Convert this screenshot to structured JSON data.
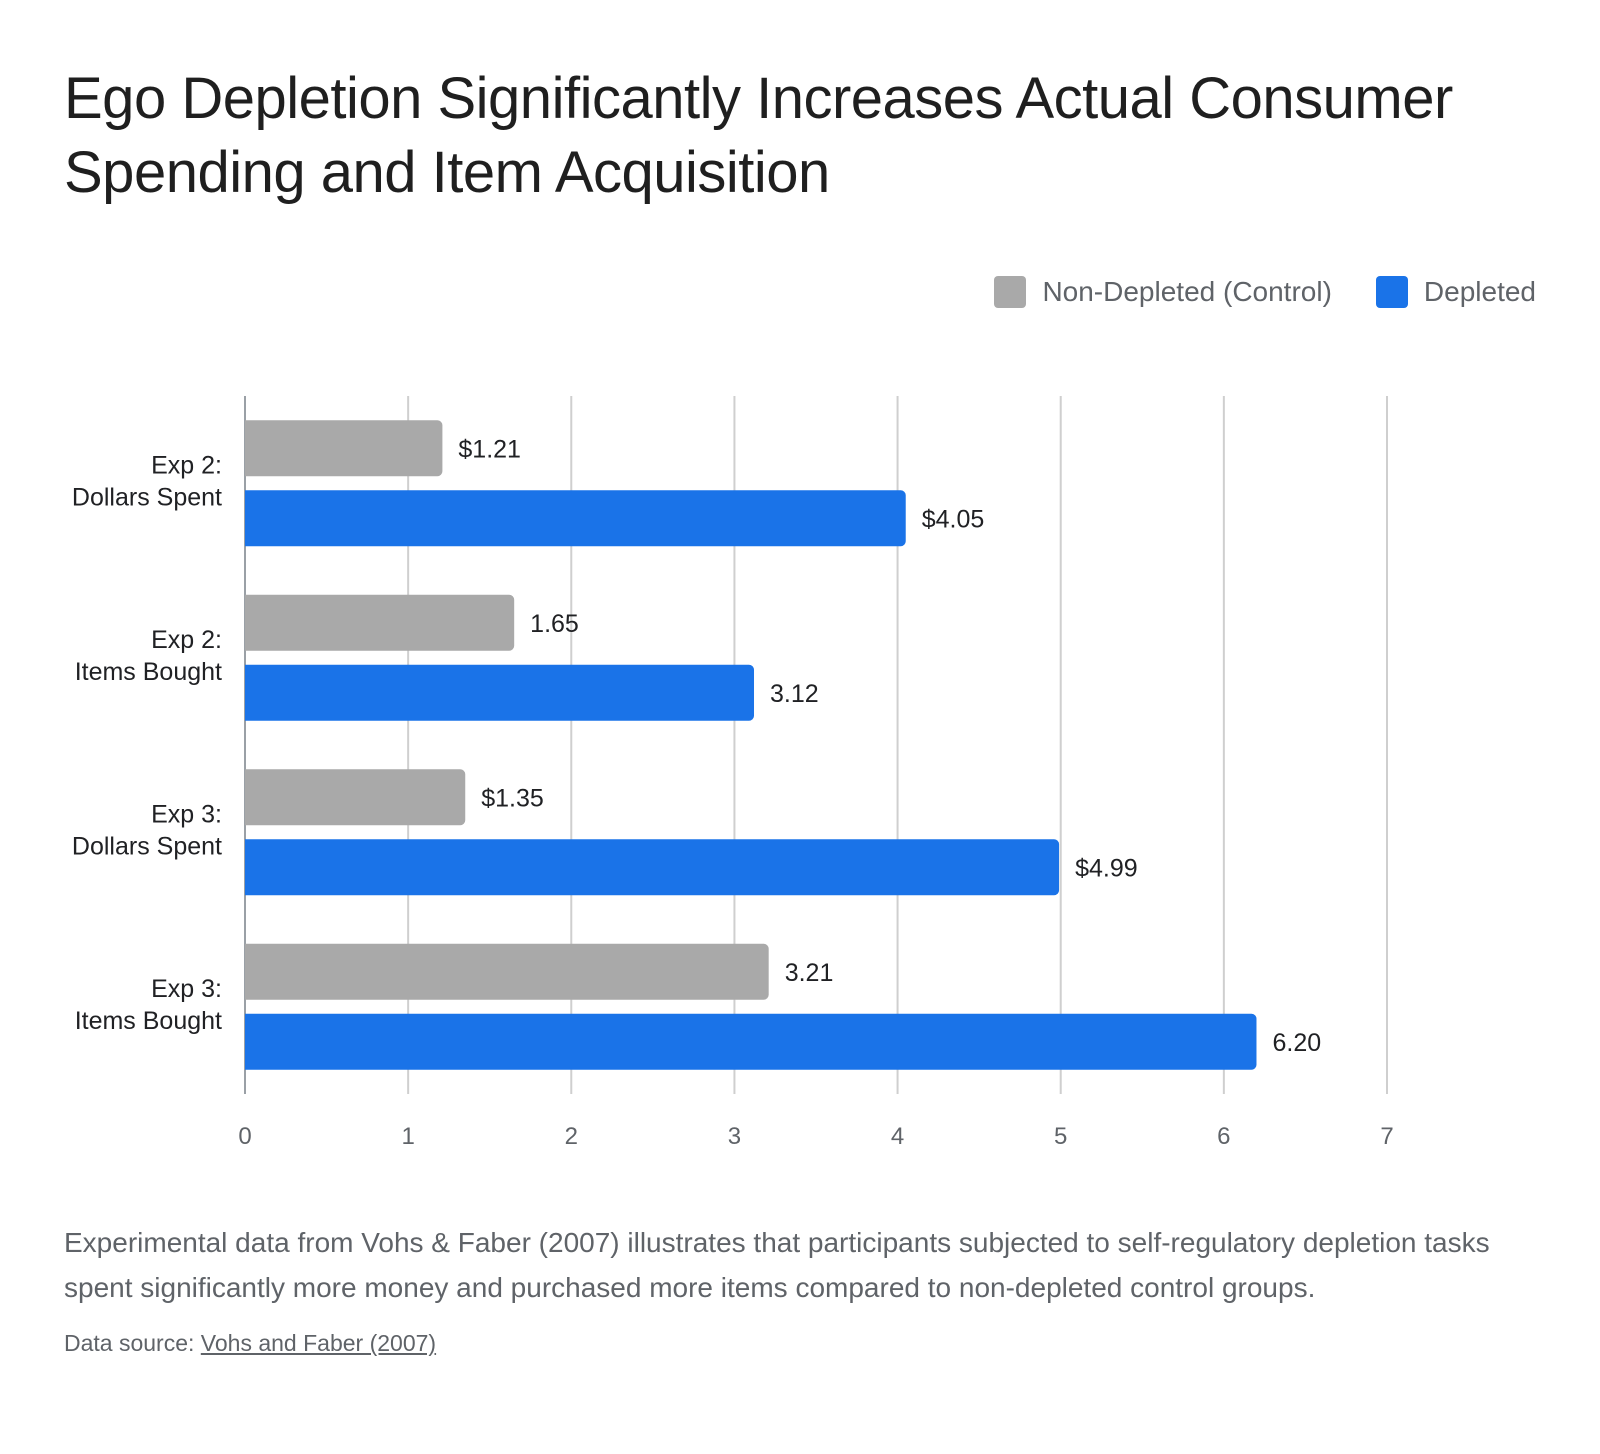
{
  "chart_data": {
    "type": "bar",
    "orientation": "horizontal",
    "title": "Ego Depletion Significantly Increases Actual Consumer Spending and Item Acquisition",
    "categories": [
      [
        "Exp 2:",
        "Dollars Spent"
      ],
      [
        "Exp 2:",
        "Items Bought"
      ],
      [
        "Exp 3:",
        "Dollars Spent"
      ],
      [
        "Exp 3:",
        "Items Bought"
      ]
    ],
    "series": [
      {
        "name": "Non-Depleted (Control)",
        "color": "#a9a9a9",
        "values": [
          1.21,
          1.65,
          1.35,
          3.21
        ],
        "labels": [
          "$1.21",
          "1.65",
          "$1.35",
          "3.21"
        ]
      },
      {
        "name": "Depleted",
        "color": "#1a73e8",
        "values": [
          4.05,
          3.12,
          4.99,
          6.2
        ],
        "labels": [
          "$4.05",
          "3.12",
          "$4.99",
          "6.20"
        ]
      }
    ],
    "xlim": [
      0,
      7
    ],
    "xticks": [
      "0",
      "1",
      "2",
      "3",
      "4",
      "5",
      "6",
      "7"
    ],
    "grid": true,
    "legend_position": "top-right"
  },
  "caption": "Experimental data from Vohs & Faber (2007) illustrates that participants subjected to self-regulatory depletion tasks spent significantly more money and purchased more items compared to non-depleted control groups.",
  "source": {
    "prefix": "Data source:",
    "link_text": "Vohs and Faber (2007)"
  }
}
